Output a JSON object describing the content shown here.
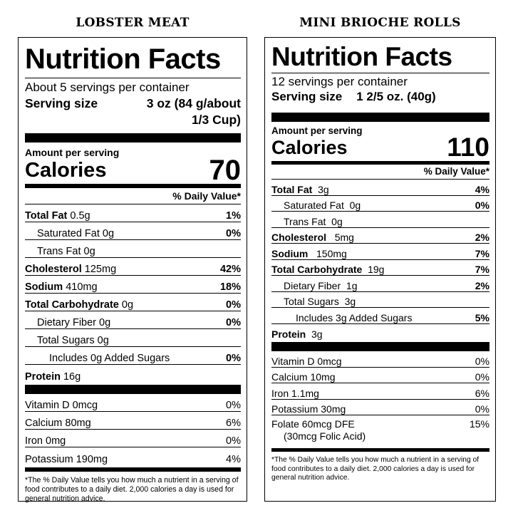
{
  "left": {
    "product": "LOBSTER MEAT",
    "heading": "Nutrition Facts",
    "servings": "About 5 servings per container",
    "serving_size_label": "Serving size",
    "serving_size_value_1": "3 oz (84 g/about",
    "serving_size_value_2": "1/3 Cup)",
    "amount_per_serving": "Amount per serving",
    "calories_label": "Calories",
    "calories_value": "70",
    "dv_header": "% Daily Value*",
    "nutrients": [
      {
        "name": "Total Fat",
        "amount": "0.5g",
        "dv": "1%"
      },
      {
        "name": "Saturated Fat",
        "amount": "0g",
        "dv": "0%"
      },
      {
        "name": "Trans Fat",
        "amount": "0g",
        "dv": ""
      },
      {
        "name": "Cholesterol",
        "amount": "125mg",
        "dv": "42%"
      },
      {
        "name": "Sodium",
        "amount": "410mg",
        "dv": "18%"
      },
      {
        "name": "Total Carbohydrate",
        "amount": "0g",
        "dv": "0%"
      },
      {
        "name": "Dietary Fiber",
        "amount": "0g",
        "dv": "0%"
      },
      {
        "name": "Total Sugars",
        "amount": "0g",
        "dv": ""
      },
      {
        "name": "Includes 0g Added Sugars",
        "amount": "",
        "dv": "0%"
      },
      {
        "name": "Protein",
        "amount": "16g",
        "dv": ""
      }
    ],
    "vitamins": [
      {
        "name": "Vitamin D 0mcg",
        "dv": "0%"
      },
      {
        "name": "Calcium 80mg",
        "dv": "6%"
      },
      {
        "name": "Iron 0mg",
        "dv": "0%"
      },
      {
        "name": "Potassium 190mg",
        "dv": "4%"
      }
    ],
    "footnote": "*The % Daily Value tells you how much a nutrient in a serving of food contributes to a daily diet. 2,000 calories a day is used for general nutrition advice."
  },
  "right": {
    "product": "MINI BRIOCHE ROLLS",
    "heading": "Nutrition Facts",
    "servings": "12 servings per container",
    "serving_size_label": "Serving size",
    "serving_size_value": "1 2/5 oz. (40g)",
    "amount_per_serving": "Amount per serving",
    "calories_label": "Calories",
    "calories_value": "110",
    "dv_header": "% Daily Value*",
    "nutrients": [
      {
        "name": "Total Fat",
        "amount": "3g",
        "dv": "4%"
      },
      {
        "name": "Saturated Fat",
        "amount": "0g",
        "dv": "0%"
      },
      {
        "name": "Trans Fat",
        "amount": "0g",
        "dv": ""
      },
      {
        "name": "Cholesterol",
        "amount": "5mg",
        "dv": "2%"
      },
      {
        "name": "Sodium",
        "amount": "150mg",
        "dv": "7%"
      },
      {
        "name": "Total Carbohydrate",
        "amount": "19g",
        "dv": "7%"
      },
      {
        "name": "Dietary Fiber",
        "amount": "1g",
        "dv": "2%"
      },
      {
        "name": "Total Sugars",
        "amount": "3g",
        "dv": ""
      },
      {
        "name": "Includes 3g Added Sugars",
        "amount": "",
        "dv": "5%"
      },
      {
        "name": "Protein",
        "amount": "3g",
        "dv": ""
      }
    ],
    "vitamins": [
      {
        "name": "Vitamin D 0mcg",
        "dv": "0%"
      },
      {
        "name": "Calcium 10mg",
        "dv": "0%"
      },
      {
        "name": "Iron 1.1mg",
        "dv": "6%"
      },
      {
        "name": "Potassium 30mg",
        "dv": "0%"
      },
      {
        "name": "Folate 60mcg DFE",
        "name2": "(30mcg Folic Acid)",
        "dv": "15%"
      }
    ],
    "footnote": "*The % Daily Value tells you how much a nutrient in a serving of food contributes to a daily diet. 2,000 calories a day is used for general nutrition advice."
  }
}
